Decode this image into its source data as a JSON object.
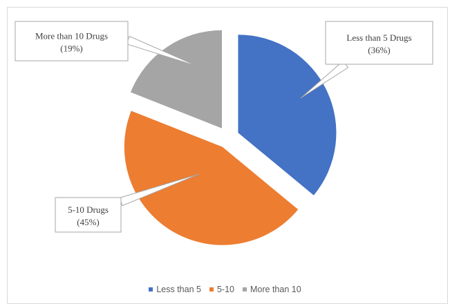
{
  "chart_data": {
    "type": "pie",
    "title": "",
    "exploded": true,
    "slices": [
      {
        "label": "Less than 5",
        "value": 36,
        "color": "#4472C4",
        "callout_line1": "Less than 5 Drugs",
        "callout_line2": "(36%)"
      },
      {
        "label": "5-10",
        "value": 45,
        "color": "#ED7D31",
        "callout_line1": "5-10 Drugs",
        "callout_line2": "(45%)"
      },
      {
        "label": "More than 10",
        "value": 19,
        "color": "#A5A5A5",
        "callout_line1": "More than 10 Drugs",
        "callout_line2": "(19%)"
      }
    ],
    "legend": {
      "position": "bottom",
      "items": [
        "Less than 5",
        "5-10",
        "More than 10"
      ]
    }
  }
}
